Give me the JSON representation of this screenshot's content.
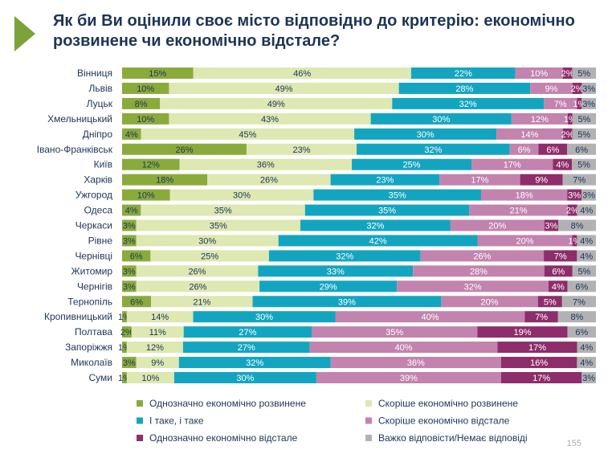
{
  "title": "Як би Ви оцінили своє місто відповідно до критерію: економічно розвинене чи економічно відстале?",
  "page_number": "155",
  "chart_data": {
    "type": "bar",
    "orientation": "horizontal",
    "stacked": true,
    "title": "Як би Ви оцінили своє місто відповідно до критерію: економічно розвинене чи економічно відстале?",
    "unit": "%",
    "legend_position": "bottom",
    "categories": [
      "Вінниця",
      "Львів",
      "Луцьк",
      "Хмельницький",
      "Дніпро",
      "Івано-Франківськ",
      "Київ",
      "Харків",
      "Ужгород",
      "Одеса",
      "Черкаси",
      "Рівне",
      "Чернівці",
      "Житомир",
      "Чернігів",
      "Тернопіль",
      "Кропивницький",
      "Полтава",
      "Запоріжжя",
      "Миколаїв",
      "Суми"
    ],
    "series": [
      {
        "name": "Однозначно економічно розвинене",
        "color": "#8aab3c",
        "values": [
          15,
          10,
          8,
          10,
          4,
          26,
          12,
          18,
          10,
          4,
          3,
          3,
          6,
          3,
          3,
          6,
          1,
          2,
          1,
          3,
          1
        ]
      },
      {
        "name": "Скоріше економічно розвинене",
        "color": "#dde8b2",
        "values": [
          46,
          49,
          49,
          43,
          45,
          23,
          36,
          26,
          30,
          35,
          35,
          30,
          25,
          26,
          26,
          21,
          14,
          11,
          12,
          9,
          10
        ]
      },
      {
        "name": "І таке, і таке",
        "color": "#13a5c0",
        "values": [
          22,
          28,
          32,
          30,
          30,
          32,
          25,
          23,
          35,
          35,
          32,
          42,
          32,
          33,
          29,
          39,
          30,
          27,
          27,
          32,
          30
        ]
      },
      {
        "name": "Скоріше економічно відстале",
        "color": "#c283ae",
        "values": [
          10,
          9,
          7,
          12,
          14,
          6,
          17,
          17,
          18,
          21,
          20,
          20,
          26,
          28,
          32,
          20,
          40,
          35,
          40,
          36,
          39
        ]
      },
      {
        "name": "Однозначно економічно відстале",
        "color": "#8e2d6b",
        "values": [
          2,
          2,
          1,
          1,
          2,
          6,
          4,
          9,
          3,
          2,
          3,
          1,
          7,
          6,
          4,
          5,
          7,
          19,
          17,
          16,
          17
        ]
      },
      {
        "name": "Важко відповісти/Немає відповіді",
        "color": "#b2b2b4",
        "values": [
          5,
          3,
          3,
          5,
          5,
          6,
          5,
          7,
          3,
          4,
          8,
          4,
          4,
          5,
          6,
          7,
          8,
          6,
          4,
          4,
          3
        ]
      }
    ]
  }
}
